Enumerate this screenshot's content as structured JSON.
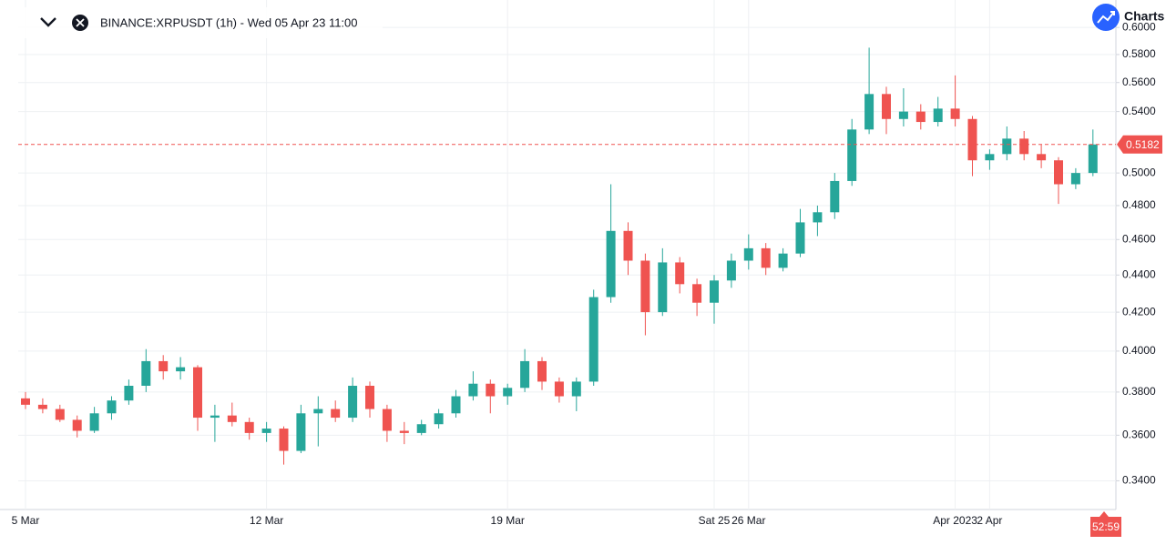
{
  "chart_data": {
    "type": "candlestick",
    "title": "BINANCE:XRPUSDT (1h) - Wed 05 Apr 23 11:00",
    "brand": "Charts",
    "countdown": "52:59",
    "categories": [
      "5 Mar",
      null,
      null,
      null,
      null,
      null,
      null,
      null,
      null,
      null,
      null,
      null,
      null,
      null,
      "12 Mar",
      null,
      null,
      null,
      null,
      null,
      null,
      null,
      null,
      null,
      null,
      null,
      null,
      null,
      "19 Mar",
      null,
      null,
      null,
      null,
      null,
      null,
      null,
      null,
      null,
      null,
      null,
      "Sat 25",
      null,
      "26 Mar",
      null,
      null,
      null,
      null,
      null,
      null,
      null,
      null,
      null,
      null,
      null,
      "Apr 2023",
      null,
      "2 Apr",
      null,
      null,
      null,
      null,
      null,
      null
    ],
    "open": [
      0.377,
      0.374,
      0.372,
      0.367,
      0.362,
      0.37,
      0.376,
      0.383,
      0.395,
      0.39,
      0.392,
      0.368,
      0.369,
      0.366,
      0.361,
      0.363,
      0.353,
      0.37,
      0.372,
      0.368,
      0.383,
      0.372,
      0.362,
      0.361,
      0.365,
      0.37,
      0.378,
      0.384,
      0.378,
      0.382,
      0.395,
      0.385,
      0.378,
      0.385,
      0.428,
      0.465,
      0.448,
      0.42,
      0.447,
      0.435,
      0.425,
      0.437,
      0.448,
      0.455,
      0.444,
      0.452,
      0.47,
      0.476,
      0.495,
      0.528,
      0.552,
      0.535,
      0.54,
      0.533,
      0.542,
      0.535,
      0.508,
      0.512,
      0.522,
      0.512,
      0.508,
      0.493,
      0.5
    ],
    "high": [
      0.38,
      0.377,
      0.374,
      0.369,
      0.373,
      0.378,
      0.386,
      0.401,
      0.398,
      0.397,
      0.393,
      0.374,
      0.375,
      0.368,
      0.366,
      0.364,
      0.374,
      0.378,
      0.376,
      0.387,
      0.385,
      0.374,
      0.366,
      0.367,
      0.372,
      0.381,
      0.39,
      0.386,
      0.384,
      0.401,
      0.397,
      0.387,
      0.387,
      0.432,
      0.493,
      0.47,
      0.452,
      0.455,
      0.45,
      0.438,
      0.44,
      0.452,
      0.463,
      0.458,
      0.455,
      0.478,
      0.48,
      0.5,
      0.535,
      0.585,
      0.557,
      0.556,
      0.545,
      0.55,
      0.565,
      0.537,
      0.515,
      0.53,
      0.527,
      0.518,
      0.51,
      0.503,
      0.528
    ],
    "low": [
      0.372,
      0.37,
      0.366,
      0.359,
      0.361,
      0.367,
      0.374,
      0.38,
      0.386,
      0.386,
      0.362,
      0.357,
      0.364,
      0.358,
      0.357,
      0.347,
      0.352,
      0.355,
      0.366,
      0.366,
      0.368,
      0.357,
      0.356,
      0.36,
      0.363,
      0.368,
      0.376,
      0.37,
      0.374,
      0.38,
      0.381,
      0.375,
      0.371,
      0.383,
      0.425,
      0.44,
      0.408,
      0.418,
      0.43,
      0.418,
      0.414,
      0.433,
      0.443,
      0.44,
      0.442,
      0.45,
      0.462,
      0.472,
      0.492,
      0.525,
      0.525,
      0.53,
      0.528,
      0.53,
      0.53,
      0.498,
      0.502,
      0.508,
      0.508,
      0.503,
      0.481,
      0.49,
      0.498
    ],
    "close": [
      0.374,
      0.372,
      0.367,
      0.362,
      0.37,
      0.376,
      0.383,
      0.395,
      0.39,
      0.392,
      0.368,
      0.369,
      0.366,
      0.361,
      0.363,
      0.353,
      0.37,
      0.372,
      0.368,
      0.383,
      0.372,
      0.362,
      0.361,
      0.365,
      0.37,
      0.378,
      0.384,
      0.378,
      0.382,
      0.395,
      0.385,
      0.378,
      0.385,
      0.428,
      0.465,
      0.448,
      0.42,
      0.447,
      0.435,
      0.425,
      0.437,
      0.448,
      0.455,
      0.444,
      0.452,
      0.47,
      0.476,
      0.495,
      0.528,
      0.552,
      0.535,
      0.54,
      0.533,
      0.542,
      0.535,
      0.508,
      0.512,
      0.522,
      0.512,
      0.508,
      0.493,
      0.5,
      0.5182
    ],
    "up_color": "#26a69a",
    "down_color": "#ef5350",
    "log_scale": true,
    "grid": true,
    "ylim": [
      0.328,
      0.621
    ],
    "yticks": [
      {
        "value": 0.6,
        "label": "0.6000"
      },
      {
        "value": 0.58,
        "label": "0.5800"
      },
      {
        "value": 0.56,
        "label": "0.5600"
      },
      {
        "value": 0.54,
        "label": "0.5400"
      },
      {
        "value": 0.5,
        "label": "0.5000"
      },
      {
        "value": 0.48,
        "label": "0.4800"
      },
      {
        "value": 0.46,
        "label": "0.4600"
      },
      {
        "value": 0.44,
        "label": "0.4400"
      },
      {
        "value": 0.42,
        "label": "0.4200"
      },
      {
        "value": 0.4,
        "label": "0.4000"
      },
      {
        "value": 0.38,
        "label": "0.3800"
      },
      {
        "value": 0.36,
        "label": "0.3600"
      },
      {
        "value": 0.34,
        "label": "0.3400"
      }
    ]
  }
}
